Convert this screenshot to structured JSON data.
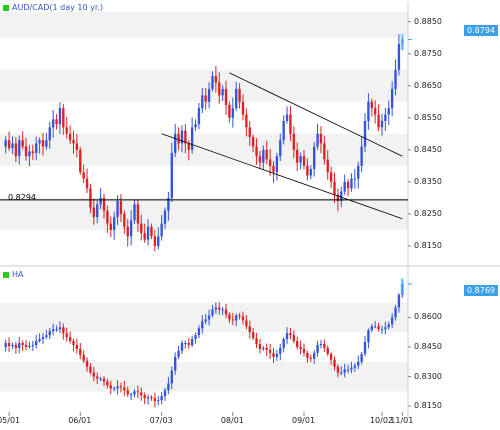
{
  "chart_data": [
    {
      "type": "candlestick",
      "title": "AUD/CAD(1 day  10 yr.)",
      "ylim": [
        0.81,
        0.888
      ],
      "y_ticks": [
        "0.8850",
        "0.8750",
        "0.8650",
        "0.8550",
        "0.8450",
        "0.8350",
        "0.8250",
        "0.8150"
      ],
      "last_price": "0.8794",
      "reference_line": {
        "label": "0.8294",
        "value": 0.8294
      },
      "grid": "horizontal bands",
      "colors": {
        "up": "#3355dd",
        "down": "#dd2222",
        "badge": "#3aa0e8",
        "title_swatch": "#22cc22"
      },
      "trendlines": [
        {
          "from": [
            "07-31",
            0.869
          ],
          "to": [
            "10-28",
            0.843
          ]
        },
        {
          "from": [
            "07-03",
            0.85
          ],
          "to": [
            "10-31",
            0.8235
          ]
        }
      ],
      "closes_start": 0.846,
      "closes": [
        0.848,
        0.8455,
        0.847,
        0.843,
        0.848,
        0.846,
        0.843,
        0.8445,
        0.844,
        0.847,
        0.848,
        0.846,
        0.848,
        0.852,
        0.8545,
        0.853,
        0.858,
        0.852,
        0.85,
        0.848,
        0.847,
        0.845,
        0.838,
        0.836,
        0.833,
        0.827,
        0.824,
        0.828,
        0.83,
        0.826,
        0.822,
        0.82,
        0.824,
        0.829,
        0.825,
        0.821,
        0.818,
        0.823,
        0.828,
        0.822,
        0.819,
        0.817,
        0.821,
        0.818,
        0.815,
        0.818,
        0.822,
        0.826,
        0.83,
        0.844,
        0.85,
        0.847,
        0.851,
        0.847,
        0.845,
        0.852,
        0.853,
        0.858,
        0.862,
        0.86,
        0.864,
        0.868,
        0.866,
        0.862,
        0.864,
        0.859,
        0.855,
        0.858,
        0.864,
        0.86,
        0.856,
        0.852,
        0.849,
        0.846,
        0.843,
        0.841,
        0.845,
        0.842,
        0.84,
        0.838,
        0.843,
        0.848,
        0.854,
        0.856,
        0.85,
        0.845,
        0.841,
        0.843,
        0.84,
        0.837,
        0.839,
        0.846,
        0.85,
        0.847,
        0.842,
        0.838,
        0.835,
        0.831,
        0.829,
        0.832,
        0.835,
        0.833,
        0.836,
        0.836,
        0.84,
        0.846,
        0.854,
        0.86,
        0.858,
        0.856,
        0.852,
        0.854,
        0.856,
        0.858,
        0.864,
        0.87,
        0.878,
        0.8794
      ]
    },
    {
      "type": "candlestick",
      "title": "HA",
      "ylim": [
        0.812,
        0.88
      ],
      "y_ticks": [
        "0.8600",
        "0.8450",
        "0.8300",
        "0.8150"
      ],
      "last_price": "0.8769",
      "x_ticks": [
        "05/01",
        "06/01",
        "07/03",
        "08/01",
        "09/01",
        "10/02",
        "11/01"
      ],
      "colors": {
        "up": "#3355dd",
        "down": "#dd2222",
        "badge": "#3aa0e8",
        "title_swatch": "#22cc22"
      },
      "closes_start": 0.845,
      "closes": [
        0.847,
        0.8455,
        0.846,
        0.8445,
        0.847,
        0.846,
        0.845,
        0.8455,
        0.846,
        0.848,
        0.849,
        0.85,
        0.851,
        0.853,
        0.854,
        0.854,
        0.855,
        0.852,
        0.85,
        0.848,
        0.846,
        0.844,
        0.841,
        0.838,
        0.835,
        0.832,
        0.83,
        0.829,
        0.829,
        0.8275,
        0.8255,
        0.824,
        0.824,
        0.825,
        0.8245,
        0.823,
        0.821,
        0.821,
        0.8225,
        0.822,
        0.8205,
        0.819,
        0.8195,
        0.819,
        0.8175,
        0.818,
        0.82,
        0.823,
        0.8265,
        0.833,
        0.84,
        0.843,
        0.847,
        0.847,
        0.846,
        0.849,
        0.851,
        0.8545,
        0.858,
        0.859,
        0.861,
        0.864,
        0.865,
        0.864,
        0.864,
        0.8615,
        0.859,
        0.8585,
        0.861,
        0.8605,
        0.8585,
        0.8555,
        0.8525,
        0.8495,
        0.8465,
        0.844,
        0.8445,
        0.8435,
        0.842,
        0.84,
        0.8415,
        0.8445,
        0.849,
        0.852,
        0.851,
        0.848,
        0.845,
        0.844,
        0.842,
        0.8395,
        0.839,
        0.842,
        0.846,
        0.8465,
        0.8445,
        0.8415,
        0.8385,
        0.835,
        0.832,
        0.832,
        0.8335,
        0.8335,
        0.8345,
        0.8355,
        0.8375,
        0.8415,
        0.8475,
        0.8535,
        0.8555,
        0.8555,
        0.854,
        0.854,
        0.855,
        0.8565,
        0.86,
        0.865,
        0.8715,
        0.8769
      ]
    }
  ]
}
